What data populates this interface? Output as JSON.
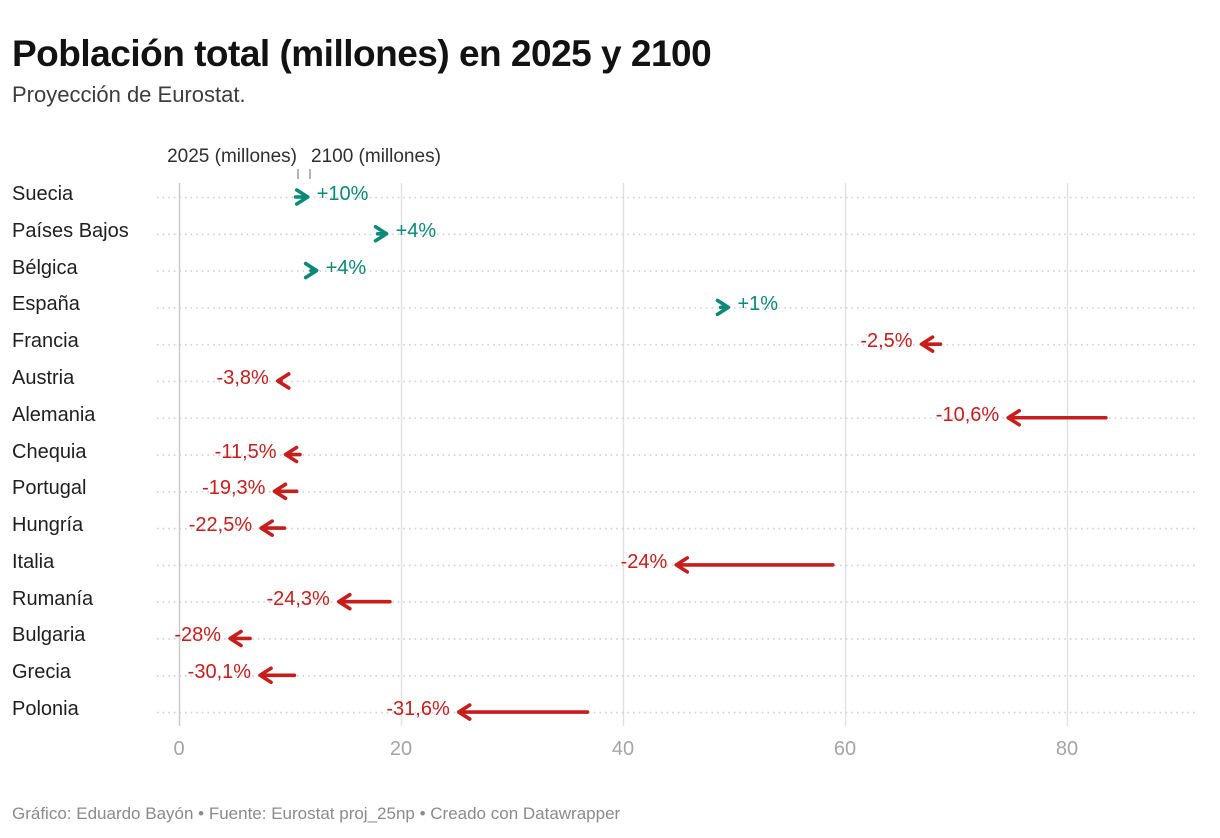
{
  "header": {
    "title": "Población total (millones) en 2025 y 2100",
    "subtitle": "Proyección de Eurostat."
  },
  "legend": {
    "col_2025_label": "2025 (millones)",
    "col_2100_label": "2100 (millones)"
  },
  "chart_data": {
    "type": "arrow",
    "title": "Población total (millones) en 2025 y 2100",
    "unit": "millones",
    "x_axis": {
      "ticks": [
        0,
        20,
        40,
        60,
        80
      ],
      "range": [
        0,
        91.5
      ],
      "grid": true
    },
    "colors": {
      "positive": "#0a8a77",
      "negative": "#c71e1d",
      "grid_line": "#e1e1e1",
      "grid_line_zero": "#c9c9c9",
      "row_dots": "#d0d0d0",
      "axis_text": "#a5a5a5"
    },
    "rows": [
      {
        "country": "Suecia",
        "v2025": 10.5,
        "v2100": 11.6,
        "change_label": "+10%",
        "direction": "up"
      },
      {
        "country": "Países Bajos",
        "v2025": 17.9,
        "v2100": 18.7,
        "change_label": "+4%",
        "direction": "up"
      },
      {
        "country": "Bélgica",
        "v2025": 11.9,
        "v2100": 12.4,
        "change_label": "+4%",
        "direction": "up"
      },
      {
        "country": "España",
        "v2025": 48.8,
        "v2100": 49.5,
        "change_label": "+1%",
        "direction": "up"
      },
      {
        "country": "Francia",
        "v2025": 68.6,
        "v2100": 66.9,
        "change_label": "-2,5%",
        "direction": "down"
      },
      {
        "country": "Austria",
        "v2025": 9.2,
        "v2100": 8.9,
        "change_label": "-3,8%",
        "direction": "down"
      },
      {
        "country": "Alemania",
        "v2025": 83.5,
        "v2100": 74.7,
        "change_label": "-10,6%",
        "direction": "down"
      },
      {
        "country": "Chequia",
        "v2025": 10.9,
        "v2100": 9.6,
        "change_label": "-11,5%",
        "direction": "down"
      },
      {
        "country": "Portugal",
        "v2025": 10.6,
        "v2100": 8.6,
        "change_label": "-19,3%",
        "direction": "down"
      },
      {
        "country": "Hungría",
        "v2025": 9.5,
        "v2100": 7.4,
        "change_label": "-22,5%",
        "direction": "down"
      },
      {
        "country": "Italia",
        "v2025": 58.9,
        "v2100": 44.8,
        "change_label": "-24%",
        "direction": "down"
      },
      {
        "country": "Rumanía",
        "v2025": 19.0,
        "v2100": 14.4,
        "change_label": "-24,3%",
        "direction": "down"
      },
      {
        "country": "Bulgaria",
        "v2025": 6.4,
        "v2100": 4.6,
        "change_label": "-28%",
        "direction": "down"
      },
      {
        "country": "Grecia",
        "v2025": 10.4,
        "v2100": 7.3,
        "change_label": "-30,1%",
        "direction": "down"
      },
      {
        "country": "Polonia",
        "v2025": 36.8,
        "v2100": 25.2,
        "change_label": "-31,6%",
        "direction": "down"
      }
    ]
  },
  "footer": {
    "credit": "Gráfico: Eduardo Bayón • Fuente: Eurostat proj_25np • Creado con Datawrapper"
  }
}
